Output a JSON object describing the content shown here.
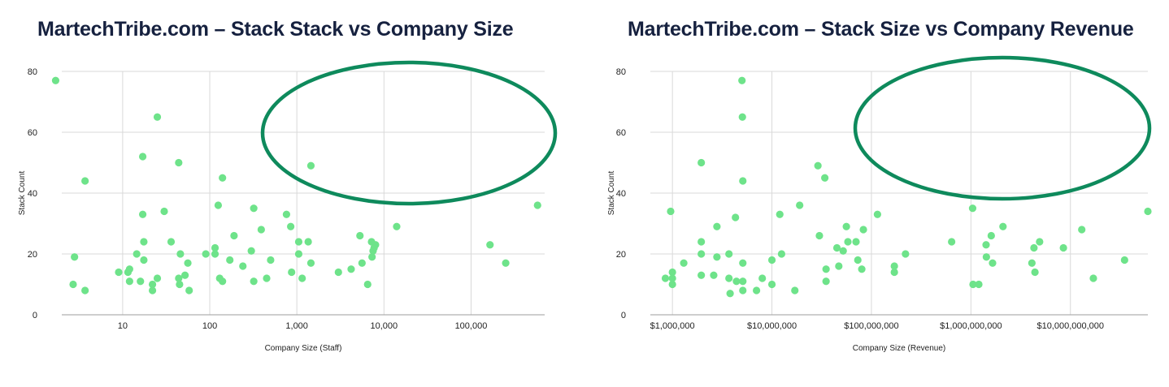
{
  "colors": {
    "point": "#6ee38a",
    "ellipse": "#0e8a5c",
    "grid": "#d9d9d9",
    "axis": "#9e9e9e",
    "title": "#16213f"
  },
  "chart_data": [
    {
      "type": "scatter",
      "title": "MartechTribe.com – Stack Stack vs Company Size",
      "xlabel": "Company Size (Staff)",
      "ylabel": "Stack Count",
      "xscale": "log",
      "xlim": [
        2,
        700000
      ],
      "ylim": [
        0,
        80
      ],
      "x_ticks": [
        10,
        100,
        1000,
        10000,
        100000
      ],
      "x_tick_labels": [
        "10",
        "100",
        "1,000",
        "10,000",
        "100,000"
      ],
      "y_ticks": [
        0,
        20,
        40,
        60,
        80
      ],
      "y_tick_labels": [
        "0",
        "20",
        "40",
        "60",
        "80"
      ],
      "grid": true,
      "annotation": {
        "shape": "ellipse",
        "x_center": 18000,
        "y_center": 60,
        "note": "empty region"
      },
      "points": [
        [
          1.7,
          77
        ],
        [
          2.7,
          10
        ],
        [
          2.8,
          19
        ],
        [
          3.7,
          44
        ],
        [
          3.7,
          8
        ],
        [
          9,
          14
        ],
        [
          11.5,
          14
        ],
        [
          12,
          15
        ],
        [
          12,
          11
        ],
        [
          14.5,
          20
        ],
        [
          16,
          11
        ],
        [
          17,
          52
        ],
        [
          17,
          33
        ],
        [
          17.5,
          24
        ],
        [
          17.5,
          18
        ],
        [
          22,
          10
        ],
        [
          22,
          8
        ],
        [
          25,
          65
        ],
        [
          25,
          12
        ],
        [
          30,
          34
        ],
        [
          36,
          24
        ],
        [
          44,
          50
        ],
        [
          44,
          12
        ],
        [
          45,
          10
        ],
        [
          46,
          20
        ],
        [
          52,
          13
        ],
        [
          56,
          17
        ],
        [
          58,
          8
        ],
        [
          90,
          20
        ],
        [
          115,
          22
        ],
        [
          115,
          20
        ],
        [
          125,
          36
        ],
        [
          130,
          12
        ],
        [
          140,
          45
        ],
        [
          140,
          11
        ],
        [
          170,
          18
        ],
        [
          190,
          26
        ],
        [
          240,
          16
        ],
        [
          300,
          21
        ],
        [
          320,
          11
        ],
        [
          320,
          35
        ],
        [
          390,
          28
        ],
        [
          450,
          12
        ],
        [
          500,
          18
        ],
        [
          760,
          33
        ],
        [
          850,
          29
        ],
        [
          870,
          14
        ],
        [
          1050,
          20
        ],
        [
          1050,
          24
        ],
        [
          1150,
          12
        ],
        [
          1350,
          24
        ],
        [
          1450,
          49
        ],
        [
          1450,
          17
        ],
        [
          3000,
          14
        ],
        [
          4200,
          15
        ],
        [
          5300,
          26
        ],
        [
          5600,
          17
        ],
        [
          6500,
          10
        ],
        [
          7200,
          24
        ],
        [
          7300,
          19
        ],
        [
          7500,
          21
        ],
        [
          7700,
          22
        ],
        [
          8000,
          23
        ],
        [
          14000,
          29
        ],
        [
          165000,
          23
        ],
        [
          250000,
          17
        ],
        [
          580000,
          36
        ]
      ]
    },
    {
      "type": "scatter",
      "title": "MartechTribe.com – Stack Size vs Company Revenue",
      "xlabel": "Company Size (Revenue)",
      "ylabel": "Stack Count",
      "xscale": "log",
      "xlim": [
        600000,
        60000000000
      ],
      "ylim": [
        0,
        80
      ],
      "x_ticks": [
        1000000,
        10000000,
        100000000,
        1000000000,
        10000000000
      ],
      "x_tick_labels": [
        "$1,000,000",
        "$10,000,000",
        "$100,000,000",
        "$1,000,000,000",
        "$10,000,000,000"
      ],
      "y_ticks": [
        0,
        20,
        40,
        60,
        80
      ],
      "y_tick_labels": [
        "0",
        "20",
        "40",
        "60",
        "80"
      ],
      "grid": true,
      "annotation": {
        "shape": "ellipse",
        "x_center": 2500000000,
        "y_center": 62,
        "note": "empty region"
      },
      "points": [
        [
          850000,
          12
        ],
        [
          960000,
          34
        ],
        [
          1000000,
          14
        ],
        [
          1000000,
          12
        ],
        [
          1000000,
          10
        ],
        [
          1300000,
          17
        ],
        [
          1950000,
          50
        ],
        [
          1950000,
          24
        ],
        [
          1950000,
          20
        ],
        [
          1950000,
          13
        ],
        [
          2600000,
          13
        ],
        [
          2800000,
          29
        ],
        [
          2800000,
          19
        ],
        [
          3700000,
          20
        ],
        [
          3700000,
          12
        ],
        [
          3800000,
          7
        ],
        [
          4300000,
          32
        ],
        [
          4400000,
          11
        ],
        [
          5000000,
          77
        ],
        [
          5050000,
          65
        ],
        [
          5100000,
          44
        ],
        [
          5100000,
          17
        ],
        [
          5100000,
          11
        ],
        [
          5100000,
          8
        ],
        [
          7000000,
          8
        ],
        [
          8000000,
          12
        ],
        [
          10000000,
          18
        ],
        [
          10000000,
          10
        ],
        [
          12000000,
          33
        ],
        [
          12500000,
          20
        ],
        [
          17000000,
          8
        ],
        [
          19000000,
          36
        ],
        [
          29000000,
          49
        ],
        [
          30000000,
          26
        ],
        [
          34000000,
          45
        ],
        [
          35000000,
          15
        ],
        [
          35000000,
          11
        ],
        [
          45000000,
          22
        ],
        [
          47000000,
          16
        ],
        [
          52000000,
          21
        ],
        [
          56000000,
          29
        ],
        [
          58000000,
          24
        ],
        [
          70000000,
          24
        ],
        [
          73000000,
          18
        ],
        [
          80000000,
          15
        ],
        [
          83000000,
          28
        ],
        [
          115000000,
          33
        ],
        [
          170000000,
          16
        ],
        [
          170000000,
          14
        ],
        [
          220000000,
          20
        ],
        [
          640000000,
          24
        ],
        [
          1040000000,
          35
        ],
        [
          1050000000,
          10
        ],
        [
          1200000000,
          10
        ],
        [
          1420000000,
          23
        ],
        [
          1430000000,
          19
        ],
        [
          1600000000,
          26
        ],
        [
          1650000000,
          17
        ],
        [
          2100000000,
          29
        ],
        [
          4100000000,
          17
        ],
        [
          4300000000,
          22
        ],
        [
          4400000000,
          14
        ],
        [
          4900000000,
          24
        ],
        [
          8500000000,
          22
        ],
        [
          13000000000,
          28
        ],
        [
          17000000000,
          12
        ],
        [
          35000000000,
          18
        ],
        [
          60000000000,
          34
        ]
      ]
    }
  ]
}
